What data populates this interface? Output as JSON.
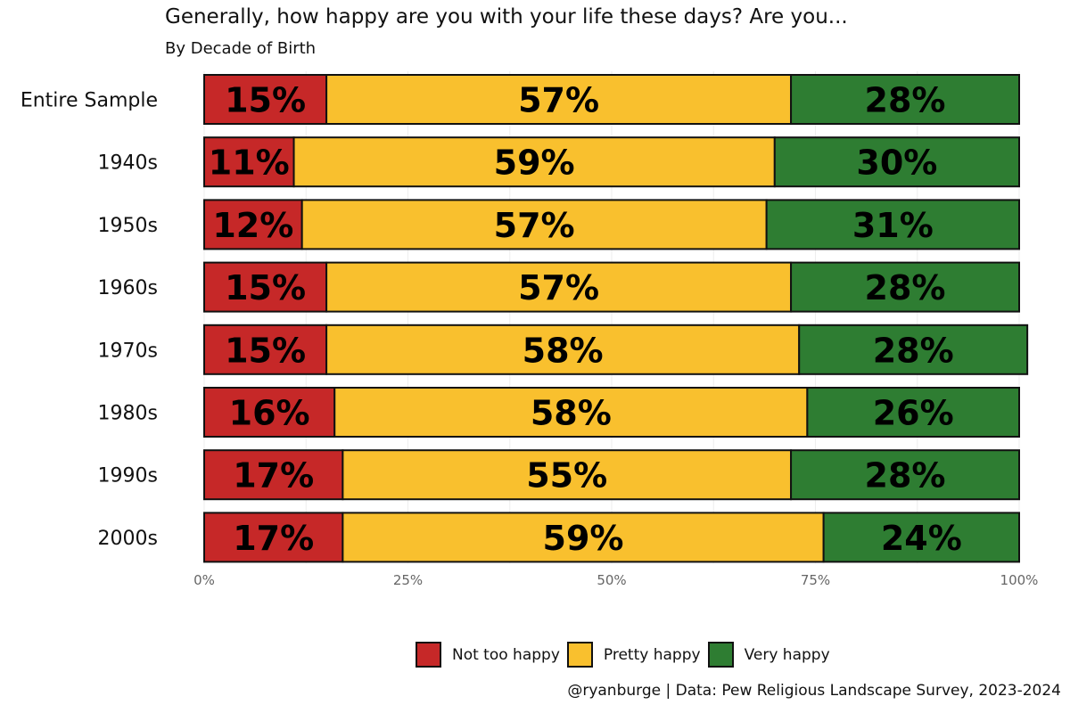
{
  "chart_data": {
    "type": "bar",
    "orientation": "horizontal",
    "stacked": true,
    "title": "Generally, how happy are you with your life these days? Are you...",
    "subtitle": "By Decade of Birth",
    "categories": [
      "Entire Sample",
      "1940s",
      "1950s",
      "1960s",
      "1970s",
      "1980s",
      "1990s",
      "2000s"
    ],
    "series": [
      {
        "name": "Not too happy",
        "color": "#c62828",
        "values": [
          15,
          11,
          12,
          15,
          15,
          16,
          17,
          17
        ]
      },
      {
        "name": "Pretty happy",
        "color": "#f9c02e",
        "values": [
          57,
          59,
          57,
          57,
          58,
          58,
          55,
          59
        ]
      },
      {
        "name": "Very happy",
        "color": "#2e7d32",
        "values": [
          28,
          30,
          31,
          28,
          28,
          26,
          28,
          24
        ]
      }
    ],
    "data_labels": [
      [
        "15%",
        "57%",
        "28%"
      ],
      [
        "11%",
        "59%",
        "30%"
      ],
      [
        "12%",
        "57%",
        "31%"
      ],
      [
        "15%",
        "57%",
        "28%"
      ],
      [
        "15%",
        "58%",
        "28%"
      ],
      [
        "16%",
        "58%",
        "26%"
      ],
      [
        "17%",
        "55%",
        "28%"
      ],
      [
        "17%",
        "59%",
        "24%"
      ]
    ],
    "xlim": [
      0,
      100
    ],
    "x_ticks": [
      "0%",
      "25%",
      "50%",
      "75%",
      "100%"
    ],
    "xlabel": "",
    "ylabel": "",
    "legend_position": "bottom",
    "caption": "@ryanburge | Data: Pew Religious Landscape Survey, 2023-2024"
  }
}
